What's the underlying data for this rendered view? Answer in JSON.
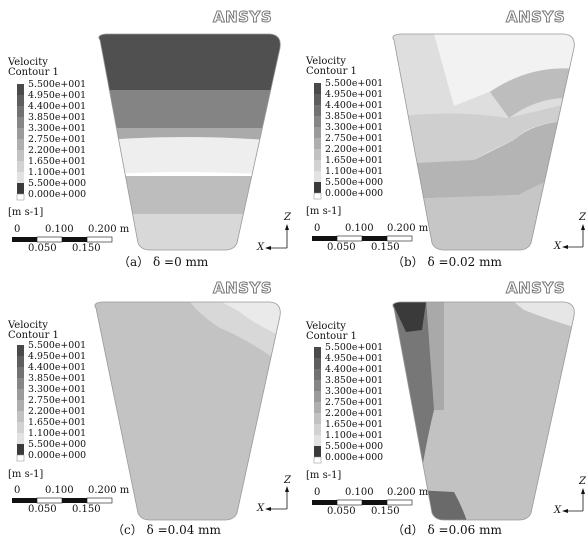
{
  "logo_text": "ANSYS",
  "legend": {
    "title_line1": "Velocity",
    "title_line2": "Contour 1",
    "values": [
      "5.500e+001",
      "4.950e+001",
      "4.400e+001",
      "3.850e+001",
      "3.300e+001",
      "2.750e+001",
      "2.200e+001",
      "1.650e+001",
      "1.100e+001",
      "5.500e+000",
      "0.000e+000"
    ],
    "colors": [
      "#4a4a4a",
      "#5e5e5e",
      "#727272",
      "#868686",
      "#9a9a9a",
      "#aeaeae",
      "#c2c2c2",
      "#d2d2d2",
      "#e2e2e2",
      "#3a3a3a",
      "#ffffff"
    ],
    "unit": "[m s-1]"
  },
  "scale_bar": {
    "top_left": "0",
    "top_mid": "0.100",
    "top_right": "0.200 m",
    "bottom_left": "0.050",
    "bottom_right": "0.150"
  },
  "axes": {
    "z": "Z",
    "x": "X"
  },
  "panels": [
    {
      "caption": "（a） δ =0 mm"
    },
    {
      "caption": "（b） δ =0.02 mm"
    },
    {
      "caption": "（c） δ =0.04 mm"
    },
    {
      "caption": "（d） δ =0.06 mm"
    }
  ]
}
